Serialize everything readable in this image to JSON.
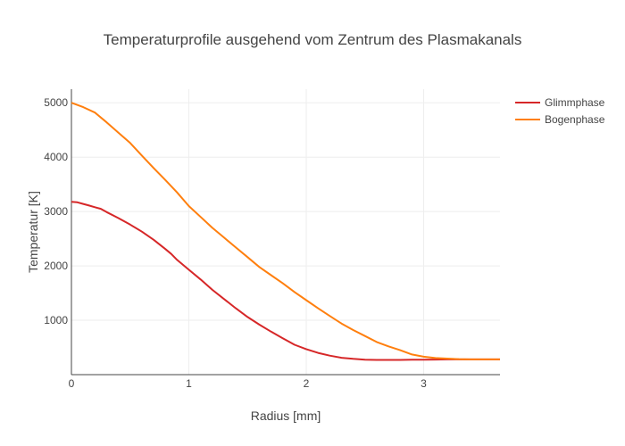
{
  "chart_data": {
    "type": "line",
    "title": "Temperaturprofile ausgehend vom Zentrum des Plasmakanals",
    "xlabel": "Radius [mm]",
    "ylabel": "Temperatur [K]",
    "xlim": [
      0,
      3.65
    ],
    "ylim": [
      0,
      5250
    ],
    "xticks": [
      0,
      1,
      2,
      3
    ],
    "xtick_labels": [
      "0",
      "1",
      "2",
      "3"
    ],
    "yticks": [
      1000,
      2000,
      3000,
      4000,
      5000
    ],
    "ytick_labels": [
      "1000",
      "2000",
      "3000",
      "4000",
      "5000"
    ],
    "grid": true,
    "legend_position": "top-right",
    "series": [
      {
        "name": "Glimmphase",
        "color": "#d62728",
        "x": [
          0,
          0.05,
          0.1,
          0.15,
          0.2,
          0.25,
          0.3,
          0.4,
          0.5,
          0.6,
          0.7,
          0.8,
          0.85,
          0.9,
          1.0,
          1.1,
          1.2,
          1.3,
          1.4,
          1.5,
          1.6,
          1.7,
          1.8,
          1.9,
          2.0,
          2.1,
          2.2,
          2.3,
          2.4,
          2.5,
          2.6,
          2.7,
          2.8,
          2.9,
          3.0,
          3.1,
          3.2,
          3.3,
          3.4,
          3.5,
          3.65
        ],
        "y": [
          3180,
          3170,
          3140,
          3110,
          3080,
          3050,
          2990,
          2880,
          2760,
          2630,
          2480,
          2310,
          2220,
          2110,
          1930,
          1750,
          1560,
          1390,
          1220,
          1060,
          920,
          790,
          670,
          550,
          470,
          400,
          350,
          310,
          290,
          275,
          270,
          270,
          270,
          275,
          275,
          278,
          280,
          280,
          280,
          280,
          280
        ]
      },
      {
        "name": "Bogenphase",
        "color": "#ff7f0e",
        "x": [
          0,
          0.1,
          0.2,
          0.3,
          0.4,
          0.5,
          0.6,
          0.7,
          0.8,
          0.9,
          1.0,
          1.1,
          1.2,
          1.3,
          1.4,
          1.5,
          1.6,
          1.7,
          1.8,
          1.9,
          2.0,
          2.1,
          2.2,
          2.3,
          2.4,
          2.5,
          2.6,
          2.7,
          2.8,
          2.9,
          3.0,
          3.1,
          3.2,
          3.3,
          3.4,
          3.5,
          3.65
        ],
        "y": [
          5000,
          4920,
          4820,
          4640,
          4450,
          4260,
          4030,
          3800,
          3580,
          3350,
          3100,
          2900,
          2700,
          2520,
          2340,
          2160,
          1980,
          1830,
          1680,
          1520,
          1370,
          1220,
          1080,
          940,
          820,
          710,
          600,
          520,
          450,
          370,
          330,
          305,
          295,
          285,
          280,
          280,
          280
        ]
      }
    ]
  }
}
